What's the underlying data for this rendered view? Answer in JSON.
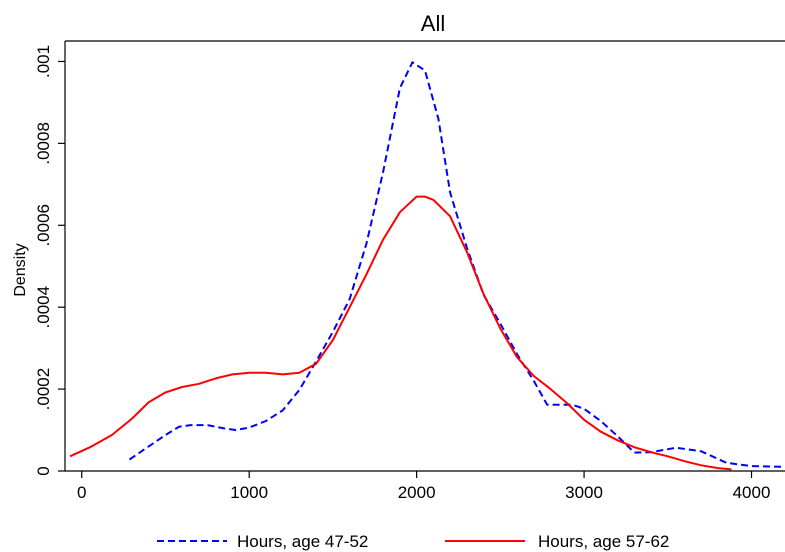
{
  "chart_data": {
    "type": "line",
    "title": "All",
    "xlabel": "",
    "ylabel": "Density",
    "xlim": [
      -100,
      4200
    ],
    "ylim": [
      0,
      0.00105
    ],
    "x_ticks": [
      0,
      1000,
      2000,
      3000,
      4000
    ],
    "x_tick_labels": [
      "0",
      "1000",
      "2000",
      "3000",
      "4000"
    ],
    "y_ticks": [
      0,
      0.0002,
      0.0004,
      0.0006,
      0.0008,
      0.001
    ],
    "y_tick_labels": [
      "0",
      ".0002",
      ".0004",
      ".0006",
      ".0008",
      ".001"
    ],
    "grid": false,
    "legend_position": "bottom",
    "series": [
      {
        "name": "Hours, age 47-52",
        "color": "#0000ff",
        "dash": "dashed",
        "points": [
          [
            285,
            2.8e-05
          ],
          [
            400,
            6e-05
          ],
          [
            500,
            8.8e-05
          ],
          [
            580,
            0.000108
          ],
          [
            650,
            0.000112
          ],
          [
            750,
            0.000112
          ],
          [
            850,
            0.000104
          ],
          [
            920,
            0.0001
          ],
          [
            1000,
            0.000106
          ],
          [
            1100,
            0.000122
          ],
          [
            1200,
            0.000148
          ],
          [
            1300,
            0.000198
          ],
          [
            1400,
            0.000268
          ],
          [
            1500,
            0.00034
          ],
          [
            1600,
            0.00042
          ],
          [
            1700,
            0.000555
          ],
          [
            1800,
            0.00073
          ],
          [
            1900,
            0.000935
          ],
          [
            1975,
            0.000998
          ],
          [
            2050,
            0.000978
          ],
          [
            2130,
            0.00086
          ],
          [
            2200,
            0.00068
          ],
          [
            2300,
            0.000545
          ],
          [
            2400,
            0.00043
          ],
          [
            2500,
            0.00036
          ],
          [
            2600,
            0.000285
          ],
          [
            2700,
            0.00022
          ],
          [
            2780,
            0.000162
          ],
          [
            2850,
            0.000162
          ],
          [
            2930,
            0.000162
          ],
          [
            3000,
            0.000152
          ],
          [
            3100,
            0.000122
          ],
          [
            3200,
            8.5e-05
          ],
          [
            3300,
            4.5e-05
          ],
          [
            3400,
            4.6e-05
          ],
          [
            3550,
            5.7e-05
          ],
          [
            3700,
            4.8e-05
          ],
          [
            3850,
            2e-05
          ],
          [
            4000,
            1.2e-05
          ],
          [
            4200,
            1e-05
          ]
        ]
      },
      {
        "name": "Hours, age 57-62",
        "color": "#ff0000",
        "dash": "solid",
        "points": [
          [
            -70,
            3.6e-05
          ],
          [
            50,
            5.8e-05
          ],
          [
            180,
            8.8e-05
          ],
          [
            300,
            0.000128
          ],
          [
            400,
            0.000168
          ],
          [
            500,
            0.000192
          ],
          [
            600,
            0.000205
          ],
          [
            700,
            0.000213
          ],
          [
            800,
            0.000226
          ],
          [
            900,
            0.000236
          ],
          [
            1000,
            0.00024
          ],
          [
            1100,
            0.00024
          ],
          [
            1200,
            0.000236
          ],
          [
            1300,
            0.00024
          ],
          [
            1400,
            0.000262
          ],
          [
            1500,
            0.00032
          ],
          [
            1600,
            0.0004
          ],
          [
            1700,
            0.00048
          ],
          [
            1800,
            0.000565
          ],
          [
            1900,
            0.000632
          ],
          [
            2000,
            0.00067
          ],
          [
            2050,
            0.00067
          ],
          [
            2100,
            0.000662
          ],
          [
            2200,
            0.000622
          ],
          [
            2300,
            0.000535
          ],
          [
            2400,
            0.000432
          ],
          [
            2500,
            0.000348
          ],
          [
            2600,
            0.000278
          ],
          [
            2700,
            0.000232
          ],
          [
            2800,
            0.0002
          ],
          [
            2900,
            0.000165
          ],
          [
            3000,
            0.000125
          ],
          [
            3100,
            9.6e-05
          ],
          [
            3200,
            7.5e-05
          ],
          [
            3300,
            5.8e-05
          ],
          [
            3400,
            4.6e-05
          ],
          [
            3500,
            3.6e-05
          ],
          [
            3600,
            2.4e-05
          ],
          [
            3700,
            1.4e-05
          ],
          [
            3800,
            7e-06
          ],
          [
            3880,
            4e-06
          ]
        ]
      }
    ]
  }
}
